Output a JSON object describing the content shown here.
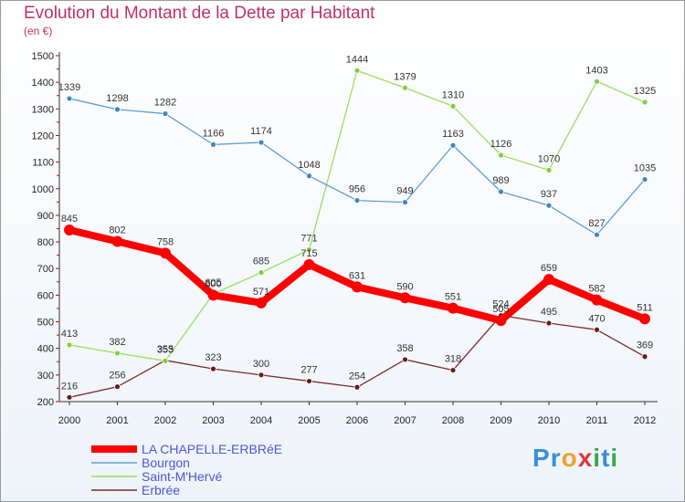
{
  "header": {
    "title": "Evolution du Montant de la Dette par Habitant",
    "subtitle": "(en €)"
  },
  "logo": {
    "text": "Proxiti",
    "letters": [
      {
        "ch": "P",
        "color": "#3a8fd8"
      },
      {
        "ch": "r",
        "color": "#3a8fd8"
      },
      {
        "ch": "o",
        "color": "#f2a12a"
      },
      {
        "ch": "x",
        "color": "#d83a3a"
      },
      {
        "ch": "i",
        "color": "#3aa84a"
      },
      {
        "ch": "t",
        "color": "#3a8fd8"
      },
      {
        "ch": "i",
        "color": "#3aa84a"
      }
    ]
  },
  "chart_data": {
    "type": "line",
    "title": "Evolution du Montant de la Dette par Habitant",
    "subtitle": "(en €)",
    "x": [
      "2000",
      "2001",
      "2002",
      "2003",
      "2004",
      "2005",
      "2006",
      "2007",
      "2008",
      "2009",
      "2010",
      "2011",
      "2012"
    ],
    "y_ticks": [
      "200",
      "300",
      "400",
      "500",
      "600",
      "700",
      "800",
      "900",
      "1000",
      "1100",
      "1200",
      "1300",
      "1400",
      "1500"
    ],
    "ylim": [
      200,
      1500
    ],
    "grid": false,
    "legend": "bottom-left",
    "series": [
      {
        "name": "LA CHAPELLE-ERBRéE",
        "color": "#ff0000",
        "marker": "#ff0000",
        "values": [
          845,
          802,
          758,
          600,
          571,
          715,
          631,
          590,
          551,
          505,
          659,
          582,
          511
        ],
        "labels": [
          "845",
          "802",
          "758",
          "600",
          "571",
          "715",
          "631",
          "590",
          "551",
          "505",
          "659",
          "582",
          "511"
        ]
      },
      {
        "name": "Bourgon",
        "color": "#5f9ed1",
        "marker": "#3f86c4",
        "values": [
          1339,
          1298,
          1282,
          1166,
          1174,
          1048,
          956,
          949,
          1163,
          989,
          937,
          827,
          1035
        ],
        "labels": [
          "1339",
          "1298",
          "1282",
          "1166",
          "1174",
          "1048",
          "956",
          "949",
          "1163",
          "989",
          "937",
          "827",
          "1035"
        ]
      },
      {
        "name": "Saint-M'Hervé",
        "color": "#99e060",
        "marker": "#7bd13a",
        "values": [
          413,
          382,
          353,
          605,
          685,
          771,
          1444,
          1379,
          1310,
          1126,
          1070,
          1403,
          1325
        ],
        "labels": [
          "413",
          "382",
          "353",
          "605",
          "685",
          "771",
          "1444",
          "1379",
          "1310",
          "1126",
          "1070",
          "1403",
          "1325"
        ]
      },
      {
        "name": "Erbrée",
        "color": "#7a2a2a",
        "marker": "#6a1a1a",
        "values": [
          216,
          256,
          355,
          323,
          300,
          277,
          254,
          358,
          318,
          524,
          495,
          470,
          369
        ],
        "labels": [
          "216",
          "256",
          "355",
          "323",
          "300",
          "277",
          "254",
          "358",
          "318",
          "524",
          "495",
          "470",
          "369"
        ]
      }
    ]
  }
}
